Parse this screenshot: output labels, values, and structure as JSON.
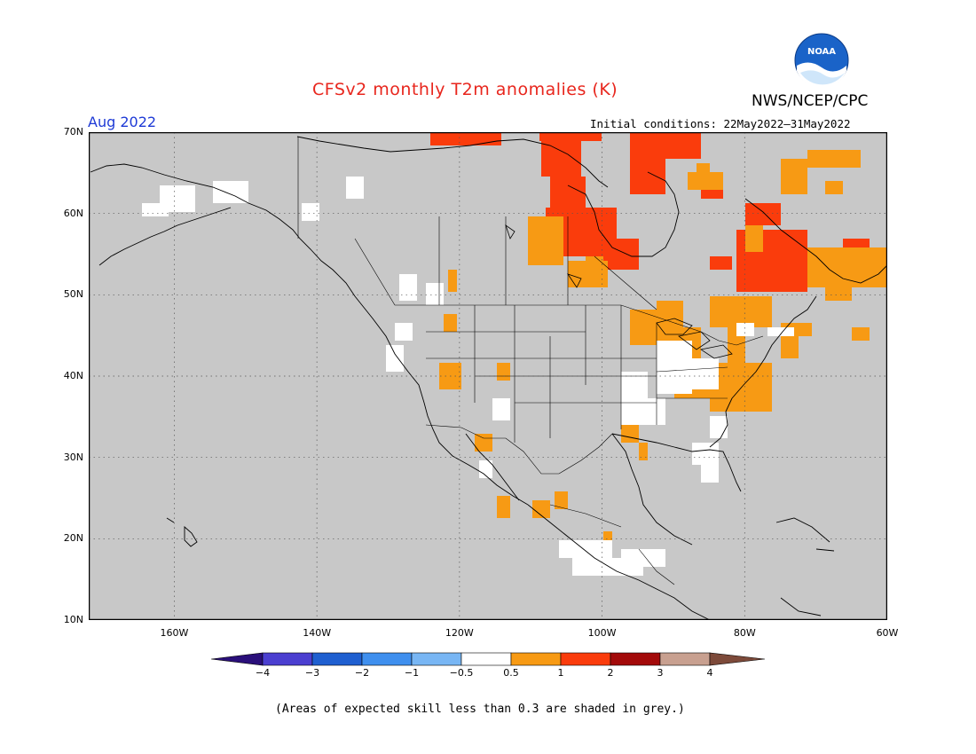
{
  "header": {
    "title": "CFSv2 monthly T2m anomalies (K)",
    "month": "Aug 2022",
    "agency": "NWS/NCEP/CPC",
    "initial_conditions": "Initial conditions: 22May2022–31May2022",
    "logo_text": "NOAA"
  },
  "map": {
    "lat_labels": [
      "70N",
      "60N",
      "50N",
      "40N",
      "30N",
      "20N",
      "10N"
    ],
    "lon_labels": [
      "160W",
      "140W",
      "120W",
      "100W",
      "80W",
      "60W"
    ],
    "extent": {
      "lon_min": -172,
      "lon_max": -60,
      "lat_min": 10,
      "lat_max": 70
    },
    "background_color": "#c8c8c8",
    "grid": "dotted"
  },
  "colorbar": {
    "labels": [
      "−4",
      "−3",
      "−2",
      "−1",
      "−0.5",
      "0.5",
      "1",
      "2",
      "3",
      "4"
    ],
    "colors": [
      "#2a0f7a",
      "#4b3fd0",
      "#1f5fd0",
      "#3f8fee",
      "#78b6f4",
      "#ffffff",
      "#f79a14",
      "#fa3c0c",
      "#a30a0a",
      "#c8a090",
      "#7d4a3a"
    ]
  },
  "footer": {
    "note": "(Areas of expected skill less than 0.3 are shaded in grey.)"
  }
}
